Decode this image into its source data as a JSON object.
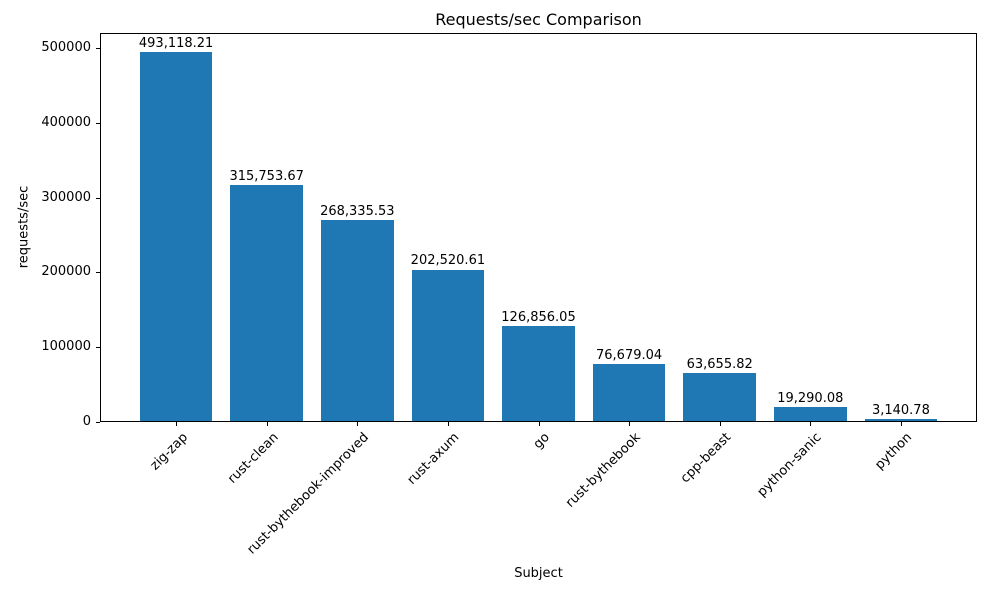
{
  "chart_data": {
    "type": "bar",
    "title": "Requests/sec Comparison",
    "xlabel": "Subject",
    "ylabel": "requests/sec",
    "categories": [
      "zig-zap",
      "rust-clean",
      "rust-bythebook-improved",
      "rust-axum",
      "go",
      "rust-bythebook",
      "cpp-beast",
      "python-sanic",
      "python"
    ],
    "values": [
      493118.21,
      315753.67,
      268335.53,
      202520.61,
      126856.05,
      76679.04,
      63655.82,
      19290.08,
      3140.78
    ],
    "value_labels": [
      "493,118.21",
      "315,753.67",
      "268,335.53",
      "202,520.61",
      "126,856.05",
      "76,679.04",
      "63,655.82",
      "19,290.08",
      "3,140.78"
    ],
    "yticks": [
      0,
      100000,
      200000,
      300000,
      400000,
      500000
    ],
    "ytick_labels": [
      "0",
      "100000",
      "200000",
      "300000",
      "400000",
      "500000"
    ],
    "ylim": [
      0,
      520000
    ],
    "bar_color": "#1f77b4",
    "grid": false,
    "legend": null,
    "x_tick_rotation": 45
  }
}
